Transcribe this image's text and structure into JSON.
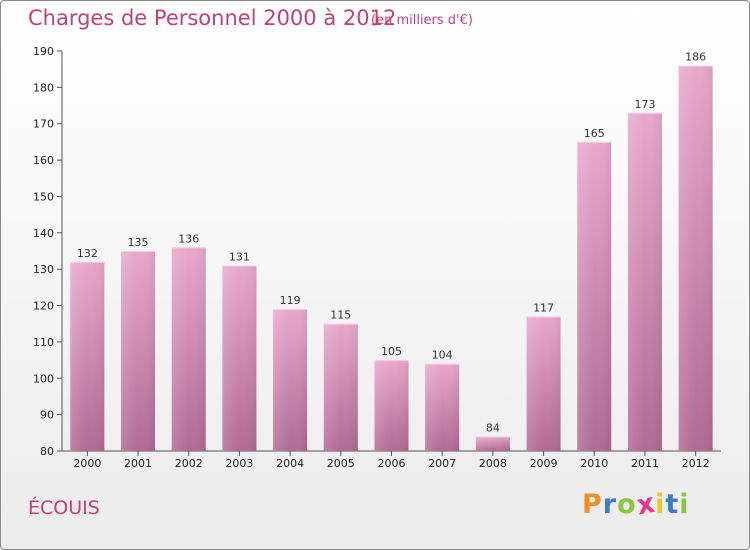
{
  "header": {
    "title": "Charges de Personnel 2000 à 2012",
    "subtitle": "(en milliers d'€)"
  },
  "footer": {
    "commune": "ÉCOUIS",
    "logo_letters": [
      {
        "char": "P",
        "color": "#f28c28"
      },
      {
        "char": "r",
        "color": "#3a7fc2"
      },
      {
        "char": "o",
        "color": "#8cc63f"
      },
      {
        "char": "x",
        "color": "#e8358a"
      },
      {
        "char": "i",
        "color": "#f2c230"
      },
      {
        "char": "t",
        "color": "#3a7fc2"
      },
      {
        "char": "i",
        "color": "#8cc63f"
      }
    ]
  },
  "chart_data": {
    "type": "bar",
    "categories": [
      "2000",
      "2001",
      "2002",
      "2003",
      "2004",
      "2005",
      "2006",
      "2007",
      "2008",
      "2009",
      "2010",
      "2011",
      "2012"
    ],
    "values": [
      132,
      135,
      136,
      131,
      119,
      115,
      105,
      104,
      84,
      117,
      165,
      173,
      186
    ],
    "ylim": [
      80,
      190
    ],
    "yticks": [
      80,
      90,
      100,
      110,
      120,
      130,
      140,
      150,
      160,
      170,
      180,
      190
    ],
    "grid": false,
    "bar_color_top": "#e8a8cc",
    "bar_color_bottom": "#b06a94",
    "title_color": "#c2407a"
  }
}
